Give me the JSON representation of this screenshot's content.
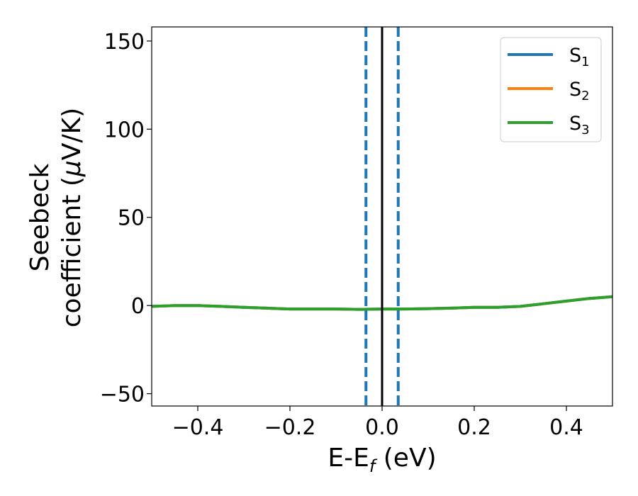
{
  "chart_data": {
    "type": "line",
    "title": "",
    "xlabel": {
      "main": "E-E",
      "sub": "f",
      "suffix": " (eV)"
    },
    "ylabel": {
      "line1": "Seebeck",
      "line2": "coefficient  (",
      "mu": "μ",
      "line2_end": "V/K)"
    },
    "xlim": [
      -0.5,
      0.5
    ],
    "ylim": [
      -57,
      158
    ],
    "xticks": [
      -0.4,
      -0.2,
      0.0,
      0.2,
      0.4
    ],
    "xtick_labels": [
      "−0.4",
      "−0.2",
      "0.0",
      "0.2",
      "0.4"
    ],
    "yticks": [
      -50,
      0,
      50,
      100,
      150
    ],
    "ytick_labels": [
      "−50",
      "0",
      "50",
      "100",
      "150"
    ],
    "grid": false,
    "legend_position": "top-right",
    "series": [
      {
        "name": "S",
        "sub": "1",
        "color": "#1f77b4",
        "x": [
          -0.5,
          -0.45,
          -0.4,
          -0.35,
          -0.3,
          -0.25,
          -0.2,
          -0.15,
          -0.1,
          -0.05,
          0.0,
          0.05,
          0.1,
          0.15,
          0.2,
          0.25,
          0.3,
          0.35,
          0.4,
          0.45,
          0.5
        ],
        "y": [
          -0.5,
          0.0,
          0.0,
          -0.5,
          -1.0,
          -1.5,
          -2.0,
          -2.0,
          -2.0,
          -2.2,
          -2.0,
          -2.0,
          -1.8,
          -1.5,
          -1.0,
          -1.0,
          -0.5,
          1.0,
          2.5,
          4.0,
          5.0
        ]
      },
      {
        "name": "S",
        "sub": "2",
        "color": "#ff7f0e",
        "x": [
          -0.5,
          -0.45,
          -0.4,
          -0.35,
          -0.3,
          -0.25,
          -0.2,
          -0.15,
          -0.1,
          -0.05,
          0.0,
          0.05,
          0.1,
          0.15,
          0.2,
          0.25,
          0.3,
          0.35,
          0.4,
          0.45,
          0.5
        ],
        "y": [
          -0.5,
          0.0,
          0.0,
          -0.5,
          -1.0,
          -1.5,
          -2.0,
          -2.0,
          -2.0,
          -2.2,
          -2.0,
          -2.0,
          -1.8,
          -1.5,
          -1.0,
          -1.0,
          -0.5,
          1.0,
          2.5,
          4.0,
          5.0
        ]
      },
      {
        "name": "S",
        "sub": "3",
        "color": "#2ca02c",
        "x": [
          -0.5,
          -0.45,
          -0.4,
          -0.35,
          -0.3,
          -0.25,
          -0.2,
          -0.15,
          -0.1,
          -0.05,
          0.0,
          0.05,
          0.1,
          0.15,
          0.2,
          0.25,
          0.3,
          0.35,
          0.4,
          0.45,
          0.5
        ],
        "y": [
          -0.5,
          0.0,
          0.0,
          -0.5,
          -1.0,
          -1.5,
          -2.0,
          -2.0,
          -2.0,
          -2.2,
          -2.0,
          -2.0,
          -1.8,
          -1.5,
          -1.0,
          -1.0,
          -0.5,
          1.0,
          2.5,
          4.0,
          5.0
        ]
      }
    ],
    "vertical_lines": [
      {
        "x": -0.035,
        "style": "dashed",
        "color": "#1f77b4"
      },
      {
        "x": 0.035,
        "style": "dashed",
        "color": "#1f77b4"
      },
      {
        "x": 0.0,
        "style": "solid",
        "color": "#000000"
      }
    ]
  }
}
